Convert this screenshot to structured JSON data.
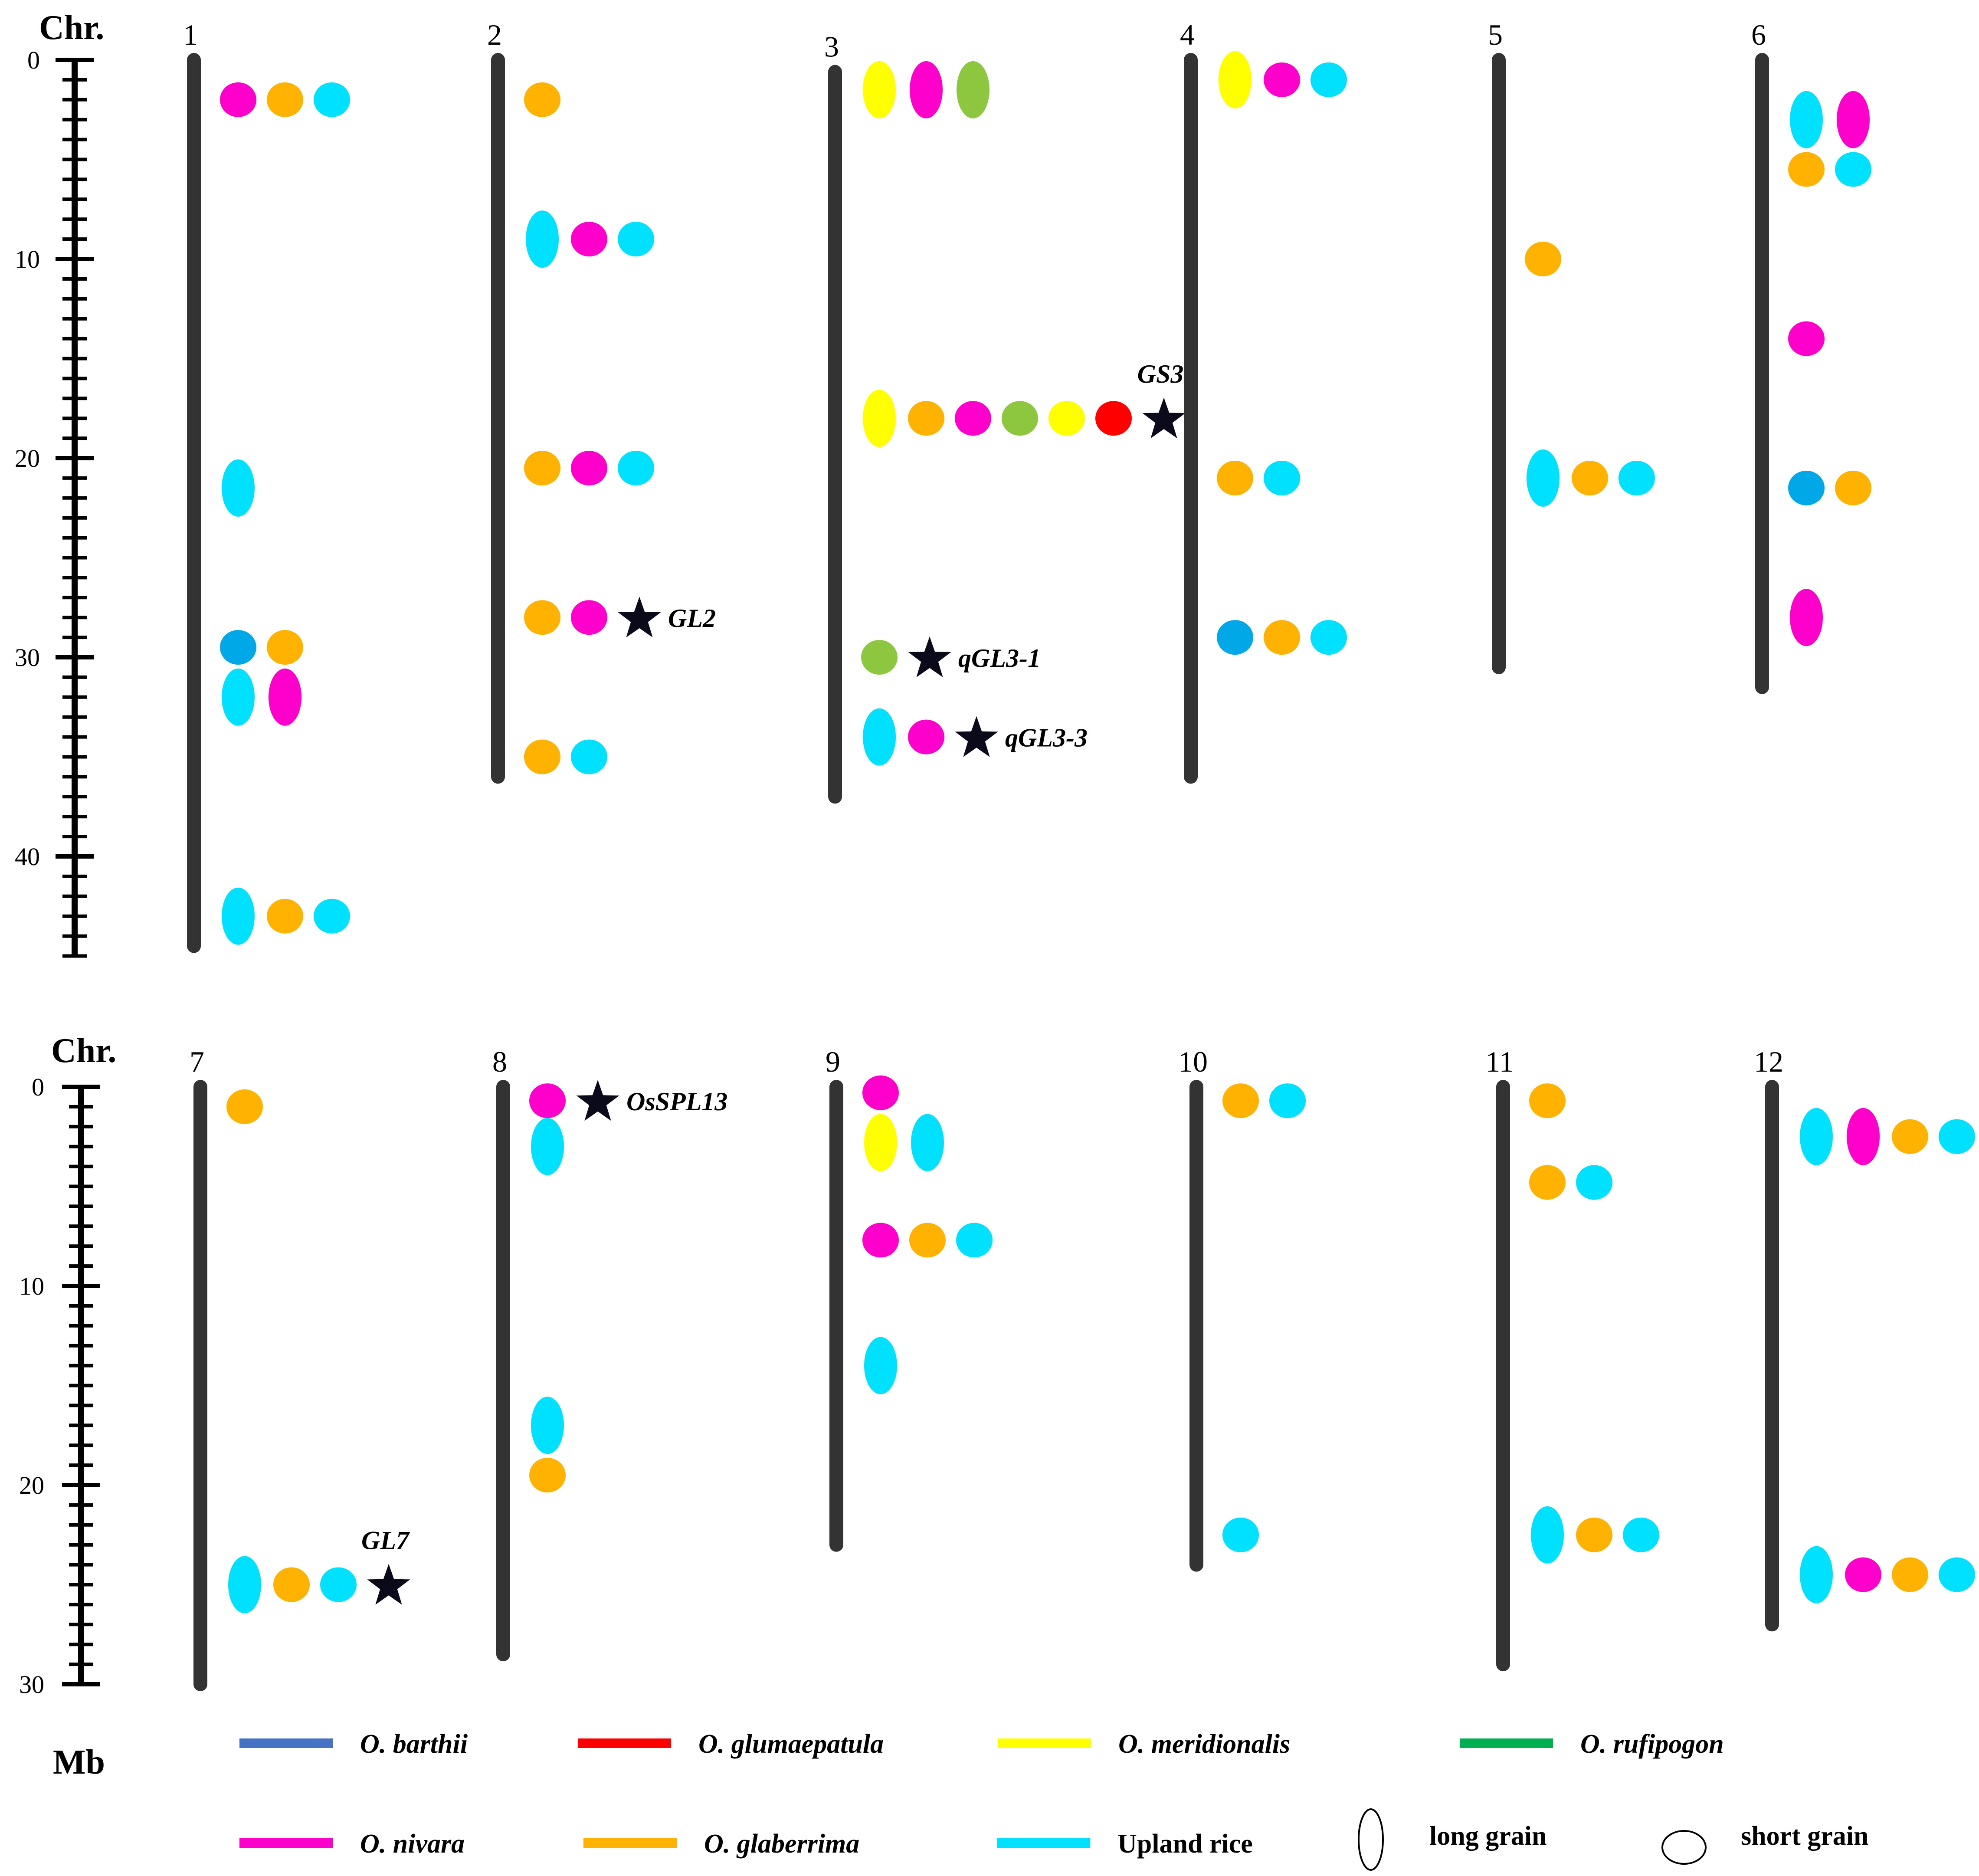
{
  "axis_label": "Chr.",
  "unit_label": "Mb",
  "colors": {
    "barthii": "#4472c4",
    "glumaepatula": "#ff0000",
    "meridionalis": "#ffff00",
    "rufipogon": "#00b050",
    "rufipogon_marker": "#8dc63f",
    "nivara": "#ff00cc",
    "glaberrima": "#ffb300",
    "upland": "#00e0ff",
    "upland_dark": "#00a8e8",
    "chromosome": "#333333"
  },
  "panels": [
    {
      "ticks": [
        "0",
        "10",
        "20",
        "30",
        "40"
      ],
      "max_mb": 45,
      "chromosomes": [
        {
          "name": "1",
          "length_mb": 44.5,
          "loci": [
            {
              "mb": 2,
              "markers": [
                [
                  "nivara",
                  "short"
                ],
                [
                  "glaberrima",
                  "short"
                ],
                [
                  "upland",
                  "short"
                ]
              ]
            },
            {
              "mb": 21.5,
              "markers": [
                [
                  "upland",
                  "long"
                ]
              ]
            },
            {
              "mb": 29.5,
              "markers": [
                [
                  "upland_dark",
                  "short"
                ],
                [
                  "glaberrima",
                  "short"
                ]
              ]
            },
            {
              "mb": 32,
              "markers": [
                [
                  "upland",
                  "long"
                ],
                [
                  "nivara",
                  "long"
                ]
              ]
            },
            {
              "mb": 43,
              "markers": [
                [
                  "upland",
                  "long"
                ],
                [
                  "glaberrima",
                  "short"
                ],
                [
                  "upland",
                  "short"
                ]
              ]
            }
          ],
          "genes": []
        },
        {
          "name": "2",
          "length_mb": 36,
          "loci": [
            {
              "mb": 2,
              "markers": [
                [
                  "glaberrima",
                  "short"
                ]
              ]
            },
            {
              "mb": 9,
              "markers": [
                [
                  "upland",
                  "long"
                ],
                [
                  "nivara",
                  "short"
                ],
                [
                  "upland",
                  "short"
                ]
              ]
            },
            {
              "mb": 20.5,
              "markers": [
                [
                  "glaberrima",
                  "short"
                ],
                [
                  "nivara",
                  "short"
                ],
                [
                  "upland",
                  "short"
                ]
              ]
            },
            {
              "mb": 28,
              "markers": [
                [
                  "glaberrima",
                  "short"
                ],
                [
                  "nivara",
                  "short"
                ]
              ]
            },
            {
              "mb": 35,
              "markers": [
                [
                  "glaberrima",
                  "short"
                ],
                [
                  "upland",
                  "short"
                ]
              ]
            }
          ],
          "genes": [
            {
              "mb": 28,
              "label": "GL2"
            }
          ]
        },
        {
          "name": "3",
          "length_mb": 37,
          "loci": [
            {
              "mb": 1.5,
              "markers": [
                [
                  "meridionalis",
                  "long"
                ],
                [
                  "nivara",
                  "long"
                ],
                [
                  "rufipogon_marker",
                  "long"
                ]
              ]
            },
            {
              "mb": 18,
              "markers": [
                [
                  "meridionalis",
                  "long"
                ],
                [
                  "glaberrima",
                  "short"
                ],
                [
                  "nivara",
                  "short"
                ],
                [
                  "rufipogon_marker",
                  "short"
                ],
                [
                  "meridionalis",
                  "short"
                ],
                [
                  "glumaepatula",
                  "short"
                ]
              ]
            },
            {
              "mb": 30,
              "markers": [
                [
                  "rufipogon_marker",
                  "short"
                ]
              ]
            },
            {
              "mb": 34,
              "markers": [
                [
                  "upland",
                  "long"
                ],
                [
                  "nivara",
                  "short"
                ]
              ]
            }
          ],
          "genes": [
            {
              "mb": 18,
              "label": "GS3",
              "label_pos": "above"
            },
            {
              "mb": 30,
              "label": "qGL3-1"
            },
            {
              "mb": 34,
              "label": "qGL3-3"
            }
          ]
        },
        {
          "name": "4",
          "length_mb": 36,
          "loci": [
            {
              "mb": 1,
              "markers": [
                [
                  "meridionalis",
                  "long"
                ],
                [
                  "nivara",
                  "short"
                ],
                [
                  "upland",
                  "short"
                ]
              ]
            },
            {
              "mb": 21,
              "markers": [
                [
                  "glaberrima",
                  "short"
                ],
                [
                  "upland",
                  "short"
                ]
              ]
            },
            {
              "mb": 29,
              "markers": [
                [
                  "upland_dark",
                  "short"
                ],
                [
                  "glaberrima",
                  "short"
                ],
                [
                  "upland",
                  "short"
                ]
              ]
            }
          ],
          "genes": []
        },
        {
          "name": "5",
          "length_mb": 30.5,
          "loci": [
            {
              "mb": 10,
              "markers": [
                [
                  "glaberrima",
                  "short"
                ]
              ]
            },
            {
              "mb": 21,
              "markers": [
                [
                  "upland",
                  "long"
                ],
                [
                  "glaberrima",
                  "short"
                ],
                [
                  "upland",
                  "short"
                ]
              ]
            }
          ],
          "genes": []
        },
        {
          "name": "6",
          "length_mb": 31.5,
          "loci": [
            {
              "mb": 3,
              "markers": [
                [
                  "upland",
                  "long"
                ],
                [
                  "nivara",
                  "long"
                ]
              ]
            },
            {
              "mb": 5.5,
              "markers": [
                [
                  "glaberrima",
                  "short"
                ],
                [
                  "upland",
                  "short"
                ]
              ]
            },
            {
              "mb": 14,
              "markers": [
                [
                  "nivara",
                  "short"
                ]
              ]
            },
            {
              "mb": 21.5,
              "markers": [
                [
                  "upland_dark",
                  "short"
                ],
                [
                  "glaberrima",
                  "short"
                ]
              ]
            },
            {
              "mb": 28,
              "markers": [
                [
                  "nivara",
                  "long"
                ]
              ]
            }
          ],
          "genes": []
        }
      ]
    },
    {
      "ticks": [
        "0",
        "10",
        "20",
        "30"
      ],
      "max_mb": 30,
      "chromosomes": [
        {
          "name": "7",
          "length_mb": 30,
          "loci": [
            {
              "mb": 1,
              "markers": [
                [
                  "glaberrima",
                  "short"
                ]
              ]
            },
            {
              "mb": 25,
              "markers": [
                [
                  "upland",
                  "long"
                ],
                [
                  "glaberrima",
                  "short"
                ],
                [
                  "upland",
                  "short"
                ]
              ]
            }
          ],
          "genes": [
            {
              "mb": 25,
              "label": "GL7",
              "label_pos": "above"
            }
          ]
        },
        {
          "name": "8",
          "length_mb": 28.5,
          "loci": [
            {
              "mb": 0.7,
              "markers": [
                [
                  "nivara",
                  "short"
                ]
              ]
            },
            {
              "mb": 3,
              "markers": [
                [
                  "upland",
                  "long"
                ]
              ]
            },
            {
              "mb": 17,
              "markers": [
                [
                  "upland",
                  "long"
                ]
              ]
            },
            {
              "mb": 19.5,
              "markers": [
                [
                  "glaberrima",
                  "short"
                ]
              ]
            }
          ],
          "genes": [
            {
              "mb": 0.7,
              "label": "OsSPL13"
            }
          ]
        },
        {
          "name": "9",
          "length_mb": 23,
          "loci": [
            {
              "mb": 0.3,
              "markers": [
                [
                  "nivara",
                  "short"
                ]
              ]
            },
            {
              "mb": 2.8,
              "markers": [
                [
                  "meridionalis",
                  "long"
                ],
                [
                  "upland",
                  "long"
                ]
              ]
            },
            {
              "mb": 7.7,
              "markers": [
                [
                  "nivara",
                  "short"
                ],
                [
                  "glaberrima",
                  "short"
                ],
                [
                  "upland",
                  "short"
                ]
              ]
            },
            {
              "mb": 14,
              "markers": [
                [
                  "upland",
                  "long"
                ]
              ]
            }
          ],
          "genes": []
        },
        {
          "name": "10",
          "length_mb": 24,
          "loci": [
            {
              "mb": 0.7,
              "markers": [
                [
                  "glaberrima",
                  "short"
                ],
                [
                  "upland",
                  "short"
                ]
              ]
            },
            {
              "mb": 22.5,
              "markers": [
                [
                  "upland",
                  "short"
                ]
              ]
            }
          ],
          "genes": []
        },
        {
          "name": "11",
          "length_mb": 29,
          "loci": [
            {
              "mb": 0.7,
              "markers": [
                [
                  "glaberrima",
                  "short"
                ]
              ]
            },
            {
              "mb": 4.8,
              "markers": [
                [
                  "glaberrima",
                  "short"
                ],
                [
                  "upland",
                  "short"
                ]
              ]
            },
            {
              "mb": 22.5,
              "markers": [
                [
                  "upland",
                  "long"
                ],
                [
                  "glaberrima",
                  "short"
                ],
                [
                  "upland",
                  "short"
                ]
              ]
            }
          ],
          "genes": []
        },
        {
          "name": "12",
          "length_mb": 27,
          "loci": [
            {
              "mb": 2.5,
              "markers": [
                [
                  "upland",
                  "long"
                ],
                [
                  "nivara",
                  "long"
                ],
                [
                  "glaberrima",
                  "short"
                ],
                [
                  "upland",
                  "short"
                ]
              ]
            },
            {
              "mb": 24.5,
              "markers": [
                [
                  "upland",
                  "long"
                ],
                [
                  "nivara",
                  "short"
                ],
                [
                  "glaberrima",
                  "short"
                ],
                [
                  "upland",
                  "short"
                ]
              ]
            }
          ],
          "genes": []
        }
      ]
    }
  ],
  "legend": {
    "row1": [
      {
        "color": "barthii",
        "label": "O. barthii",
        "italic": true
      },
      {
        "color": "glumaepatula",
        "label": "O. glumaepatula",
        "italic": true
      },
      {
        "color": "meridionalis",
        "label": "O. meridionalis",
        "italic": true
      },
      {
        "color": "rufipogon",
        "label": "O. rufipogon",
        "italic": true
      }
    ],
    "row2": [
      {
        "color": "nivara",
        "label": "O. nivara",
        "italic": true
      },
      {
        "color": "glaberrima",
        "label": "O. glaberrima",
        "italic": true
      },
      {
        "color": "upland",
        "label": "Upland rice",
        "italic": false
      }
    ],
    "shapes": [
      {
        "shape": "long",
        "label": "long grain"
      },
      {
        "shape": "short",
        "label": "short grain"
      }
    ]
  }
}
